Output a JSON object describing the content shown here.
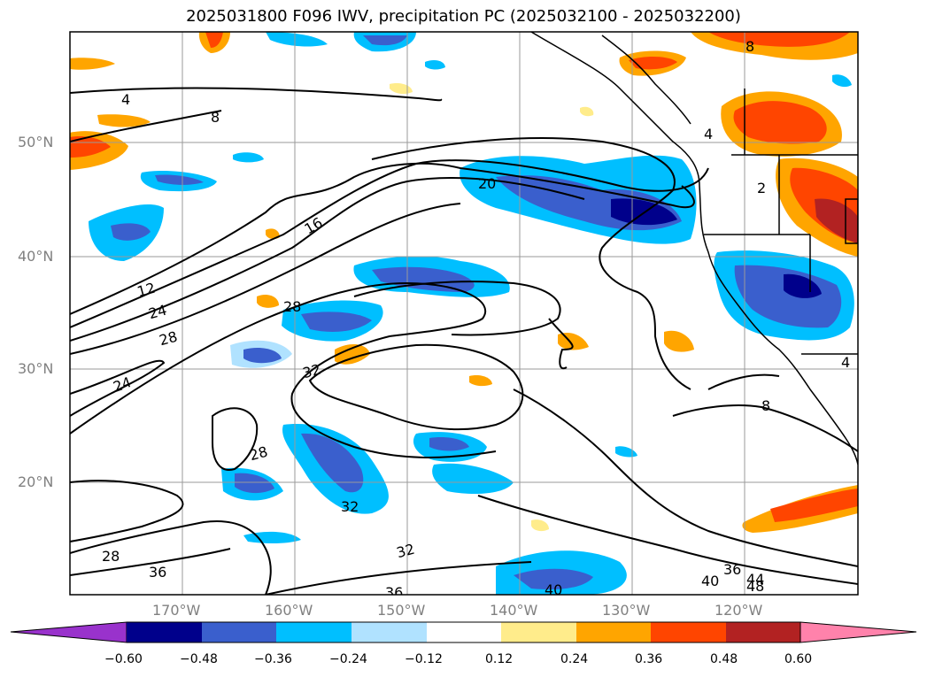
{
  "title": "2025031800 F096 IWV, precipitation PC (2025032100 - 2025032200)",
  "lat_labels": [
    "50°N",
    "40°N",
    "30°N",
    "20°N"
  ],
  "lon_labels": [
    "170°W",
    "160°W",
    "150°W",
    "140°W",
    "130°W",
    "120°W"
  ],
  "contour_labels": [
    "4",
    "8",
    "16",
    "20",
    "12",
    "24",
    "28",
    "28",
    "24",
    "32",
    "28",
    "32",
    "32",
    "28",
    "36",
    "36",
    "40",
    "40",
    "36",
    "44",
    "48",
    "8",
    "4",
    "2",
    "4",
    "8"
  ],
  "colorbar": {
    "ticks": [
      "−0.60",
      "−0.48",
      "−0.36",
      "−0.24",
      "−0.12",
      "0.12",
      "0.24",
      "0.36",
      "0.48",
      "0.60"
    ],
    "colors": [
      "#9932cc",
      "#00008b",
      "#3a5fcd",
      "#00bfff",
      "#b0e2ff",
      "#ffffff",
      "#ffec8b",
      "#ffa500",
      "#ff4500",
      "#b22222",
      "#ff82ab"
    ]
  }
}
